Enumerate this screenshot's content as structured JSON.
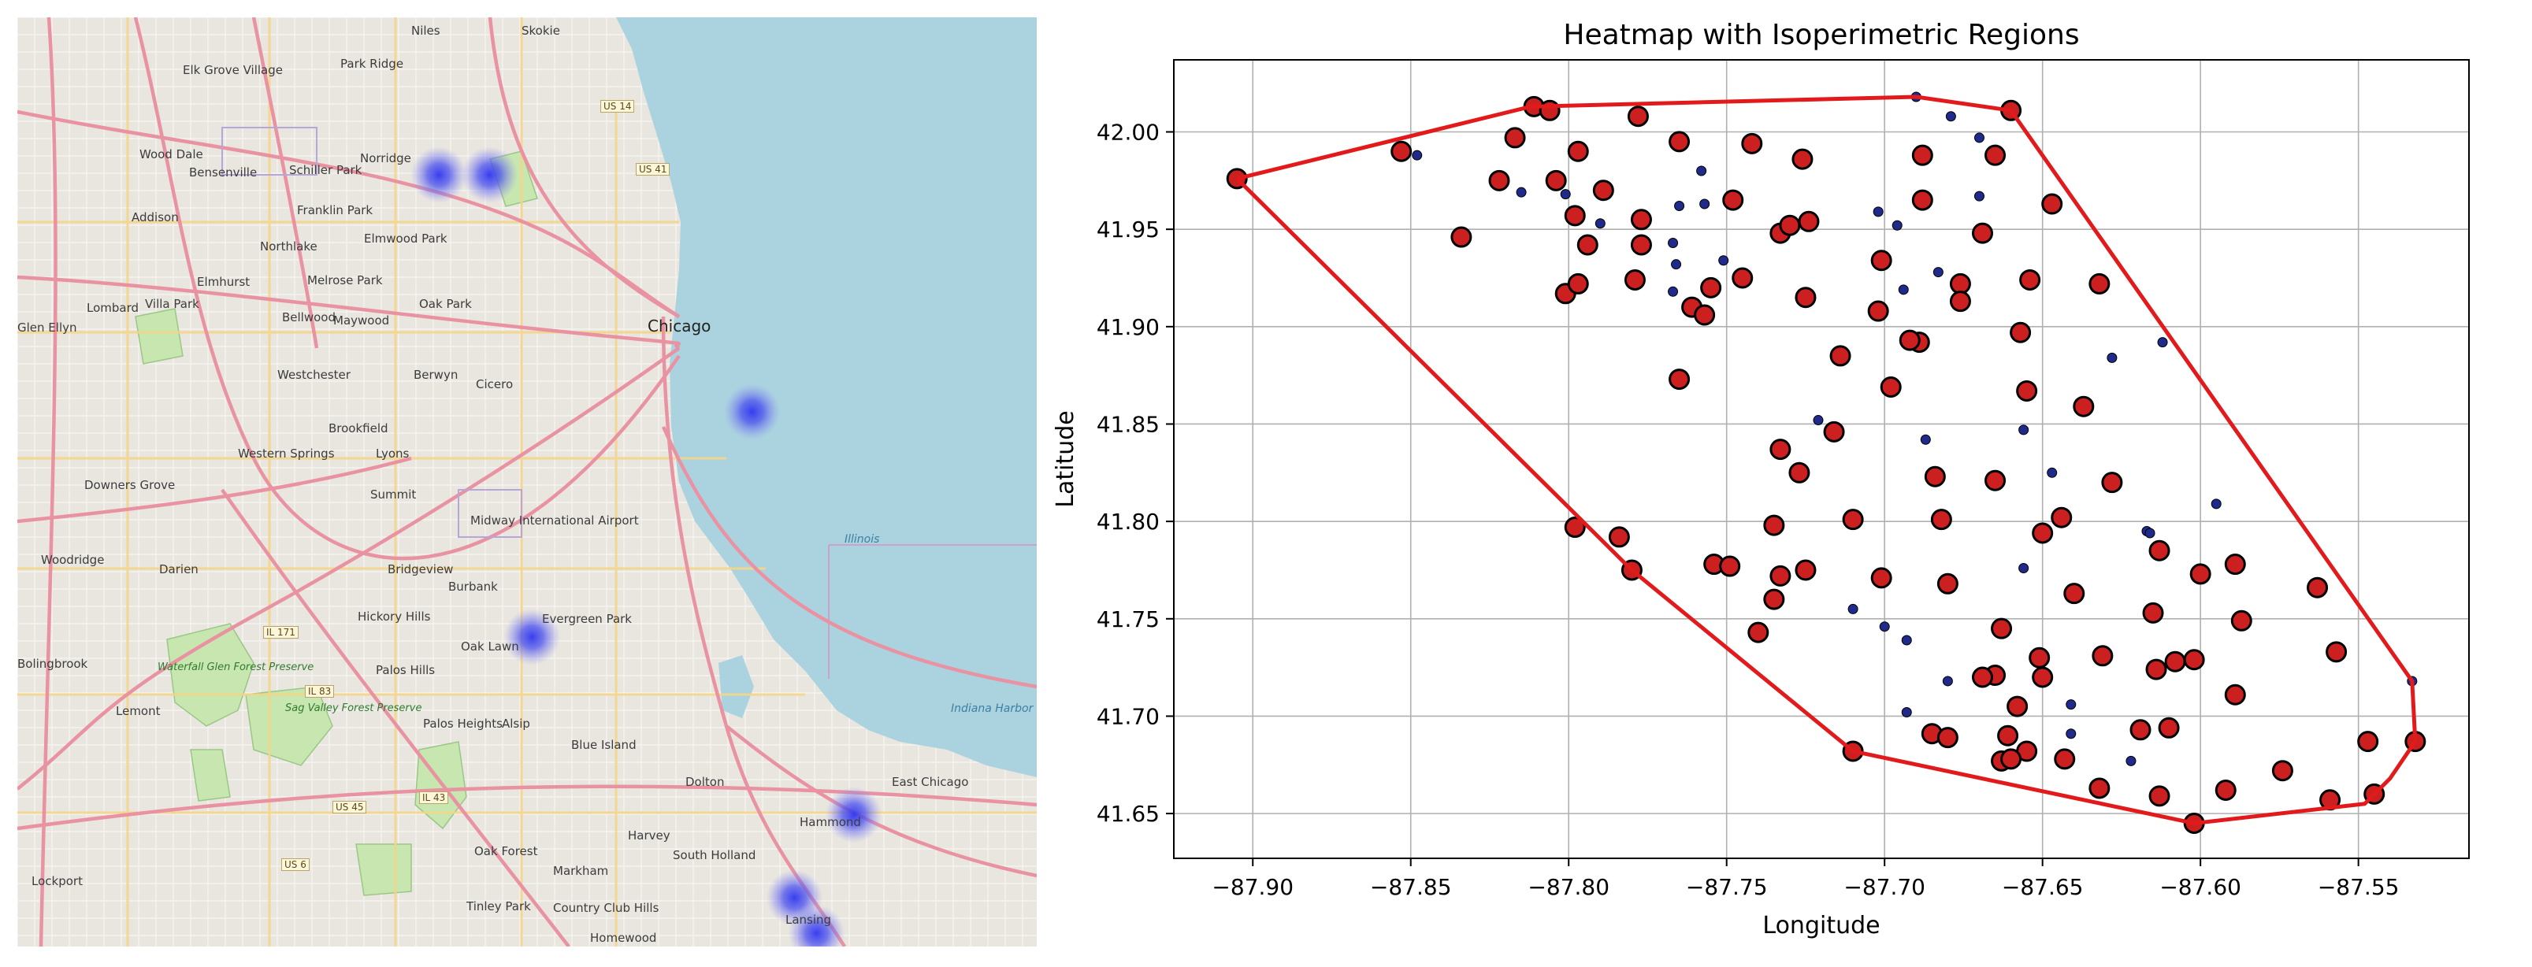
{
  "map": {
    "places": [
      {
        "id": "niles",
        "name": "Niles"
      },
      {
        "id": "skokie",
        "name": "Skokie"
      },
      {
        "id": "elk-grove",
        "name": "Elk Grove Village"
      },
      {
        "id": "park-ridge",
        "name": "Park Ridge"
      },
      {
        "id": "wood-dale",
        "name": "Wood Dale"
      },
      {
        "id": "bensenville",
        "name": "Bensenville"
      },
      {
        "id": "schiller-park",
        "name": "Schiller Park"
      },
      {
        "id": "norridge",
        "name": "Norridge"
      },
      {
        "id": "addison",
        "name": "Addison"
      },
      {
        "id": "franklin-park",
        "name": "Franklin Park"
      },
      {
        "id": "northlake",
        "name": "Northlake"
      },
      {
        "id": "elmwood-park",
        "name": "Elmwood Park"
      },
      {
        "id": "elmhurst",
        "name": "Elmhurst"
      },
      {
        "id": "melrose-park",
        "name": "Melrose Park"
      },
      {
        "id": "lombard",
        "name": "Lombard"
      },
      {
        "id": "villa-park",
        "name": "Villa Park"
      },
      {
        "id": "bellwood",
        "name": "Bellwood"
      },
      {
        "id": "maywood",
        "name": "Maywood"
      },
      {
        "id": "oak-park",
        "name": "Oak Park"
      },
      {
        "id": "glen-ellyn",
        "name": "Glen Ellyn"
      },
      {
        "id": "chicago",
        "name": "Chicago"
      },
      {
        "id": "westchester",
        "name": "Westchester"
      },
      {
        "id": "berwyn",
        "name": "Berwyn"
      },
      {
        "id": "cicero",
        "name": "Cicero"
      },
      {
        "id": "brookfield",
        "name": "Brookfield"
      },
      {
        "id": "western-springs",
        "name": "Western Springs"
      },
      {
        "id": "lyons",
        "name": "Lyons"
      },
      {
        "id": "downers-grove",
        "name": "Downers Grove"
      },
      {
        "id": "summit",
        "name": "Summit"
      },
      {
        "id": "midway",
        "name": "Midway International Airport"
      },
      {
        "id": "woodridge",
        "name": "Woodridge"
      },
      {
        "id": "darien",
        "name": "Darien"
      },
      {
        "id": "bridgeview",
        "name": "Bridgeview"
      },
      {
        "id": "burbank",
        "name": "Burbank"
      },
      {
        "id": "hickory-hills",
        "name": "Hickory Hills"
      },
      {
        "id": "evergreen-park",
        "name": "Evergreen Park"
      },
      {
        "id": "oak-lawn",
        "name": "Oak Lawn"
      },
      {
        "id": "palos-hills",
        "name": "Palos Hills"
      },
      {
        "id": "bolingbrook",
        "name": "Bolingbrook"
      },
      {
        "id": "lemont",
        "name": "Lemont"
      },
      {
        "id": "palos-heights",
        "name": "Palos Heights"
      },
      {
        "id": "alsip",
        "name": "Alsip"
      },
      {
        "id": "blue-island",
        "name": "Blue Island"
      },
      {
        "id": "dolton",
        "name": "Dolton"
      },
      {
        "id": "east-chicago",
        "name": "East Chicago"
      },
      {
        "id": "hammond",
        "name": "Hammond"
      },
      {
        "id": "oak-forest",
        "name": "Oak Forest"
      },
      {
        "id": "harvey",
        "name": "Harvey"
      },
      {
        "id": "south-holland",
        "name": "South Holland"
      },
      {
        "id": "markham",
        "name": "Markham"
      },
      {
        "id": "lockport",
        "name": "Lockport"
      },
      {
        "id": "tinley-park",
        "name": "Tinley Park"
      },
      {
        "id": "country-club-hills",
        "name": "Country Club Hills"
      },
      {
        "id": "lansing",
        "name": "Lansing"
      },
      {
        "id": "homewood",
        "name": "Homewood"
      }
    ],
    "water_labels": [
      {
        "id": "illinois",
        "name": "Illinois"
      },
      {
        "id": "indiana-harbor",
        "name": "Indiana Harbor Works"
      }
    ],
    "park_labels": [
      {
        "id": "waterfall-glen",
        "name": "Waterfall Glen Forest Preserve"
      },
      {
        "id": "sag-valley",
        "name": "Sag Valley Forest Preserve"
      }
    ],
    "shields": [
      {
        "id": "us14",
        "name": "US 14"
      },
      {
        "id": "us41",
        "name": "US 41"
      },
      {
        "id": "il171",
        "name": "IL 171"
      },
      {
        "id": "il83",
        "name": "IL 83"
      },
      {
        "id": "us45",
        "name": "US 45"
      },
      {
        "id": "il43",
        "name": "IL 43"
      },
      {
        "id": "us6",
        "name": "US 6"
      }
    ],
    "heat_spots": [
      {
        "lon": -87.805,
        "lat": 41.98
      },
      {
        "lon": -87.775,
        "lat": 41.98
      },
      {
        "lon": -87.62,
        "lat": 41.88
      },
      {
        "lon": -87.75,
        "lat": 41.785
      },
      {
        "lon": -87.56,
        "lat": 41.71
      },
      {
        "lon": -87.595,
        "lat": 41.675
      },
      {
        "lon": -87.582,
        "lat": 41.66
      }
    ],
    "colors": {
      "land": "#e9e6df",
      "water": "#aad3df",
      "park": "#c8e6b0",
      "highway": "#e892a2",
      "major_road": "#f4d58a",
      "heat": "#5a5ee8"
    }
  },
  "chart_data": {
    "type": "scatter",
    "title": "Heatmap with Isoperimetric Regions",
    "xlabel": "Longitude",
    "ylabel": "Latitude",
    "xlim": [
      -87.925,
      -87.515
    ],
    "ylim": [
      41.627,
      42.037
    ],
    "xticks": [
      -87.9,
      -87.85,
      -87.8,
      -87.75,
      -87.7,
      -87.65,
      -87.6,
      -87.55
    ],
    "xtick_labels": [
      "−87.90",
      "−87.85",
      "−87.80",
      "−87.75",
      "−87.70",
      "−87.65",
      "−87.60",
      "−87.55"
    ],
    "yticks": [
      41.65,
      41.7,
      41.75,
      41.8,
      41.85,
      41.9,
      41.95,
      42.0
    ],
    "ytick_labels": [
      "41.65",
      "41.70",
      "41.75",
      "41.80",
      "41.85",
      "41.90",
      "41.95",
      "42.00"
    ],
    "grid": true,
    "hull": [
      [
        -87.905,
        41.976
      ],
      [
        -87.812,
        42.013
      ],
      [
        -87.69,
        42.018
      ],
      [
        -87.66,
        42.011
      ],
      [
        -87.533,
        41.718
      ],
      [
        -87.532,
        41.687
      ],
      [
        -87.54,
        41.668
      ],
      [
        -87.548,
        41.655
      ],
      [
        -87.602,
        41.645
      ],
      [
        -87.71,
        41.682
      ],
      [
        -87.78,
        41.775
      ],
      [
        -87.905,
        41.976
      ]
    ],
    "hull_color": "#e31a1c",
    "large_points": [
      [
        -87.905,
        41.976
      ],
      [
        -87.853,
        41.99
      ],
      [
        -87.811,
        42.013
      ],
      [
        -87.806,
        42.011
      ],
      [
        -87.778,
        42.008
      ],
      [
        -87.765,
        41.995
      ],
      [
        -87.817,
        41.997
      ],
      [
        -87.822,
        41.975
      ],
      [
        -87.797,
        41.99
      ],
      [
        -87.804,
        41.975
      ],
      [
        -87.789,
        41.97
      ],
      [
        -87.834,
        41.946
      ],
      [
        -87.798,
        41.957
      ],
      [
        -87.794,
        41.942
      ],
      [
        -87.777,
        41.942
      ],
      [
        -87.777,
        41.955
      ],
      [
        -87.742,
        41.994
      ],
      [
        -87.726,
        41.986
      ],
      [
        -87.748,
        41.965
      ],
      [
        -87.733,
        41.948
      ],
      [
        -87.73,
        41.952
      ],
      [
        -87.724,
        41.954
      ],
      [
        -87.755,
        41.92
      ],
      [
        -87.745,
        41.925
      ],
      [
        -87.725,
        41.915
      ],
      [
        -87.761,
        41.91
      ],
      [
        -87.757,
        41.906
      ],
      [
        -87.801,
        41.917
      ],
      [
        -87.797,
        41.922
      ],
      [
        -87.779,
        41.924
      ],
      [
        -87.688,
        41.988
      ],
      [
        -87.665,
        41.988
      ],
      [
        -87.66,
        42.011
      ],
      [
        -87.688,
        41.965
      ],
      [
        -87.669,
        41.948
      ],
      [
        -87.647,
        41.963
      ],
      [
        -87.701,
        41.934
      ],
      [
        -87.676,
        41.922
      ],
      [
        -87.676,
        41.913
      ],
      [
        -87.702,
        41.908
      ],
      [
        -87.657,
        41.897
      ],
      [
        -87.654,
        41.924
      ],
      [
        -87.632,
        41.922
      ],
      [
        -87.714,
        41.885
      ],
      [
        -87.689,
        41.892
      ],
      [
        -87.692,
        41.893
      ],
      [
        -87.698,
        41.869
      ],
      [
        -87.655,
        41.867
      ],
      [
        -87.637,
        41.859
      ],
      [
        -87.765,
        41.873
      ],
      [
        -87.716,
        41.846
      ],
      [
        -87.733,
        41.837
      ],
      [
        -87.727,
        41.825
      ],
      [
        -87.684,
        41.823
      ],
      [
        -87.665,
        41.821
      ],
      [
        -87.628,
        41.82
      ],
      [
        -87.644,
        41.802
      ],
      [
        -87.735,
        41.798
      ],
      [
        -87.71,
        41.801
      ],
      [
        -87.682,
        41.801
      ],
      [
        -87.65,
        41.794
      ],
      [
        -87.798,
        41.797
      ],
      [
        -87.784,
        41.792
      ],
      [
        -87.754,
        41.778
      ],
      [
        -87.749,
        41.777
      ],
      [
        -87.725,
        41.775
      ],
      [
        -87.78,
        41.775
      ],
      [
        -87.613,
        41.785
      ],
      [
        -87.6,
        41.773
      ],
      [
        -87.589,
        41.778
      ],
      [
        -87.64,
        41.763
      ],
      [
        -87.615,
        41.753
      ],
      [
        -87.701,
        41.771
      ],
      [
        -87.68,
        41.768
      ],
      [
        -87.735,
        41.76
      ],
      [
        -87.733,
        41.772
      ],
      [
        -87.74,
        41.743
      ],
      [
        -87.663,
        41.745
      ],
      [
        -87.587,
        41.749
      ],
      [
        -87.563,
        41.766
      ],
      [
        -87.651,
        41.73
      ],
      [
        -87.631,
        41.731
      ],
      [
        -87.608,
        41.728
      ],
      [
        -87.602,
        41.729
      ],
      [
        -87.557,
        41.733
      ],
      [
        -87.614,
        41.724
      ],
      [
        -87.665,
        41.721
      ],
      [
        -87.669,
        41.72
      ],
      [
        -87.65,
        41.72
      ],
      [
        -87.658,
        41.705
      ],
      [
        -87.589,
        41.711
      ],
      [
        -87.619,
        41.693
      ],
      [
        -87.61,
        41.694
      ],
      [
        -87.547,
        41.687
      ],
      [
        -87.532,
        41.687
      ],
      [
        -87.71,
        41.682
      ],
      [
        -87.685,
        41.691
      ],
      [
        -87.68,
        41.689
      ],
      [
        -87.661,
        41.69
      ],
      [
        -87.655,
        41.682
      ],
      [
        -87.663,
        41.677
      ],
      [
        -87.66,
        41.678
      ],
      [
        -87.643,
        41.678
      ],
      [
        -87.632,
        41.663
      ],
      [
        -87.613,
        41.659
      ],
      [
        -87.592,
        41.662
      ],
      [
        -87.574,
        41.672
      ],
      [
        -87.559,
        41.657
      ],
      [
        -87.545,
        41.66
      ],
      [
        -87.602,
        41.645
      ]
    ],
    "small_points": [
      [
        -87.848,
        41.988
      ],
      [
        -87.815,
        41.969
      ],
      [
        -87.801,
        41.968
      ],
      [
        -87.79,
        41.953
      ],
      [
        -87.758,
        41.98
      ],
      [
        -87.765,
        41.962
      ],
      [
        -87.757,
        41.963
      ],
      [
        -87.767,
        41.943
      ],
      [
        -87.766,
        41.932
      ],
      [
        -87.751,
        41.934
      ],
      [
        -87.767,
        41.918
      ],
      [
        -87.69,
        42.018
      ],
      [
        -87.679,
        42.008
      ],
      [
        -87.67,
        41.997
      ],
      [
        -87.702,
        41.959
      ],
      [
        -87.696,
        41.952
      ],
      [
        -87.67,
        41.967
      ],
      [
        -87.694,
        41.919
      ],
      [
        -87.683,
        41.928
      ],
      [
        -87.612,
        41.892
      ],
      [
        -87.628,
        41.884
      ],
      [
        -87.656,
        41.847
      ],
      [
        -87.721,
        41.852
      ],
      [
        -87.687,
        41.842
      ],
      [
        -87.647,
        41.825
      ],
      [
        -87.617,
        41.795
      ],
      [
        -87.616,
        41.794
      ],
      [
        -87.595,
        41.809
      ],
      [
        -87.656,
        41.776
      ],
      [
        -87.71,
        41.755
      ],
      [
        -87.7,
        41.746
      ],
      [
        -87.693,
        41.739
      ],
      [
        -87.68,
        41.718
      ],
      [
        -87.693,
        41.702
      ],
      [
        -87.641,
        41.706
      ],
      [
        -87.641,
        41.691
      ],
      [
        -87.622,
        41.677
      ],
      [
        -87.533,
        41.718
      ]
    ],
    "marker_colors": {
      "large_fill": "#cc1f1f",
      "small_fill": "#1f2a8a",
      "edge": "#000000"
    }
  }
}
